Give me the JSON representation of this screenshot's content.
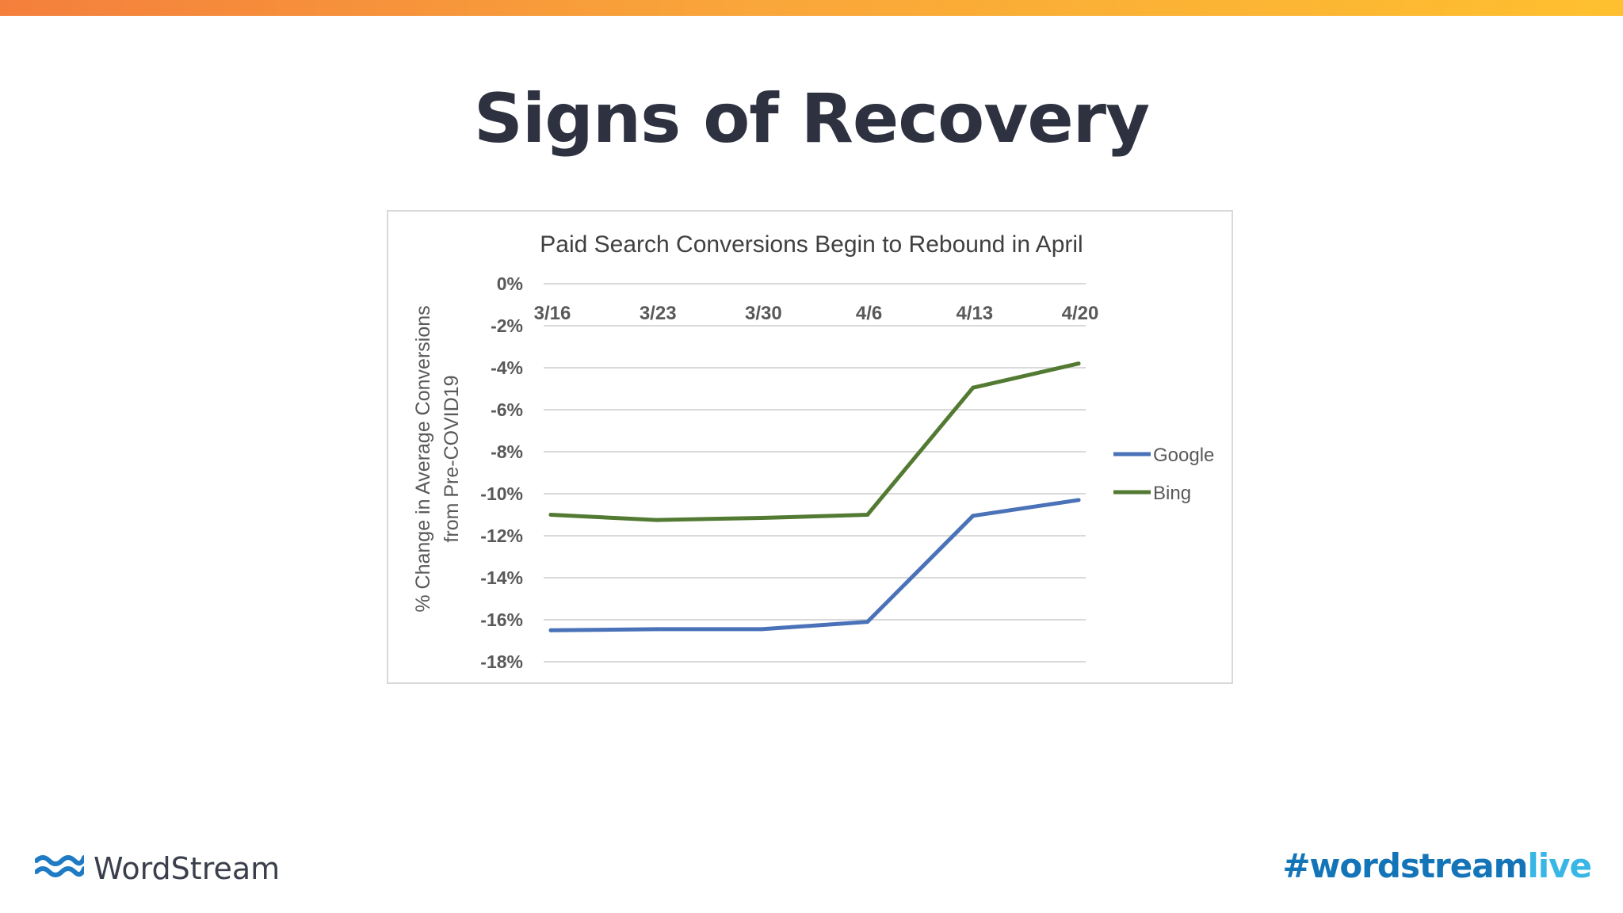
{
  "slide": {
    "title": "Signs of Recovery"
  },
  "footer": {
    "brand": "WordStream",
    "logo_icon": "wordstream-wave-icon",
    "hashtag_main": "#wordstream",
    "hashtag_accent": "live"
  },
  "colors": {
    "top_bar_start": "#f47f3c",
    "top_bar_end": "#fec02f",
    "google": "#4a72b8",
    "bing": "#527a32",
    "hashtag_main": "#1474b8",
    "hashtag_accent": "#38b6e6"
  },
  "chart_data": {
    "type": "line",
    "title": "Paid Search Conversions Begin to Rebound in April",
    "xlabel": "",
    "ylabel": "% Change in Average Conversions from Pre-COVID19",
    "categories": [
      "3/16",
      "3/23",
      "3/30",
      "4/6",
      "4/13",
      "4/20"
    ],
    "ylim": [
      -18,
      0
    ],
    "yticks": [
      "0%",
      "-2%",
      "-4%",
      "-6%",
      "-8%",
      "-10%",
      "-12%",
      "-14%",
      "-16%",
      "-18%"
    ],
    "grid": true,
    "x_axis_position": "top",
    "legend_position": "right",
    "series": [
      {
        "name": "Google",
        "color": "#4a72b8",
        "values": [
          -16.5,
          -16.45,
          -16.45,
          -16.1,
          -11.05,
          -10.3
        ]
      },
      {
        "name": "Bing",
        "color": "#527a32",
        "values": [
          -11.0,
          -11.25,
          -11.15,
          -11.0,
          -4.95,
          -3.8
        ]
      }
    ]
  }
}
